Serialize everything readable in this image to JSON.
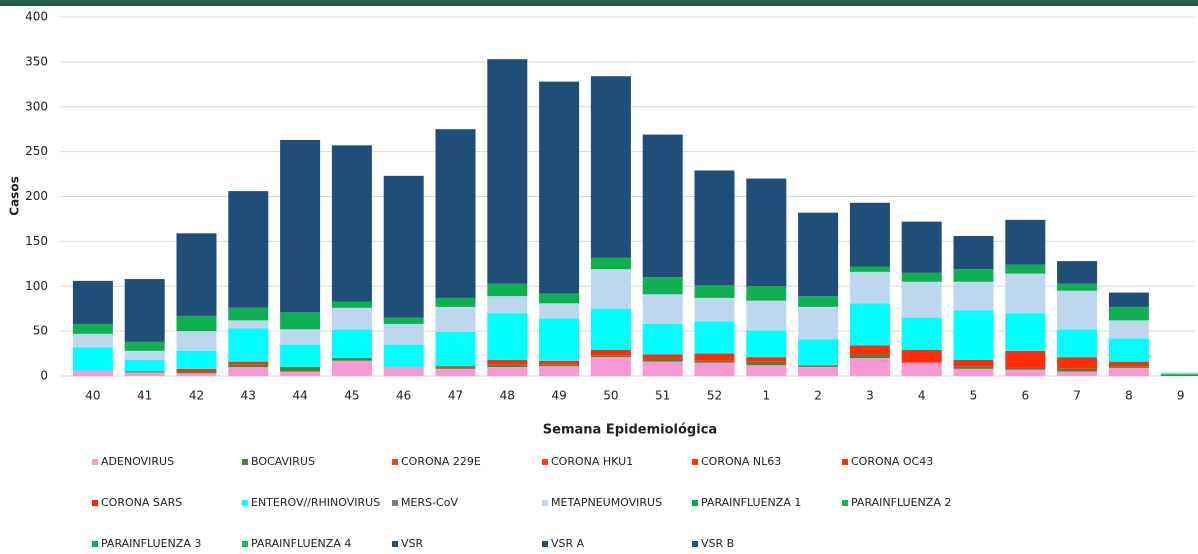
{
  "chart_data": {
    "type": "stacked_bar",
    "categories": [
      "40",
      "41",
      "42",
      "43",
      "44",
      "45",
      "46",
      "47",
      "48",
      "49",
      "50",
      "51",
      "52",
      "1",
      "2",
      "3",
      "4",
      "5",
      "6",
      "7",
      "8",
      "9"
    ],
    "x_label": "Semana Epidemiológica",
    "y_label": "Casos",
    "ylim": [
      0,
      400
    ],
    "yticks": [
      0,
      50,
      100,
      150,
      200,
      250,
      300,
      350,
      400
    ],
    "grid": true,
    "series": [
      {
        "name": "ADENOVIRUS",
        "color": "#f79ad3",
        "values": [
          6,
          4,
          3,
          10,
          5,
          17,
          10,
          8,
          10,
          11,
          21,
          16,
          15,
          12,
          10,
          20,
          15,
          8,
          7,
          5,
          9,
          0
        ]
      },
      {
        "name": "BOCAVIRUS",
        "color": "#548235",
        "values": [
          0,
          1,
          2,
          3,
          5,
          3,
          0,
          2,
          3,
          2,
          2,
          3,
          2,
          4,
          1,
          4,
          0,
          3,
          2,
          3,
          2,
          2
        ]
      },
      {
        "name": "CORONA 229E",
        "color": "#ff3d14",
        "values": [
          0,
          0,
          0,
          0,
          0,
          0,
          0,
          0,
          0,
          0,
          0,
          0,
          0,
          0,
          0,
          0,
          0,
          0,
          0,
          0,
          0,
          0
        ]
      },
      {
        "name": "CORONA HKU1",
        "color": "#ff3f0f",
        "values": [
          0,
          0,
          0,
          0,
          0,
          0,
          0,
          0,
          0,
          0,
          0,
          0,
          0,
          0,
          0,
          0,
          0,
          0,
          0,
          0,
          0,
          0
        ]
      },
      {
        "name": "CORONA NL63",
        "color": "#ff3300",
        "values": [
          0,
          0,
          0,
          0,
          0,
          0,
          0,
          0,
          0,
          0,
          0,
          0,
          0,
          0,
          0,
          0,
          0,
          0,
          0,
          0,
          0,
          0
        ]
      },
      {
        "name": "CORONA OC43",
        "color": "#ff2e0a",
        "values": [
          0,
          0,
          3,
          3,
          0,
          0,
          0,
          1,
          5,
          4,
          6,
          5,
          8,
          5,
          1,
          10,
          14,
          7,
          19,
          13,
          5,
          0
        ]
      },
      {
        "name": "CORONA SARS",
        "color": "#ff2200",
        "values": [
          0,
          0,
          0,
          0,
          0,
          0,
          0,
          0,
          0,
          0,
          0,
          0,
          0,
          0,
          0,
          0,
          0,
          0,
          0,
          0,
          0,
          0
        ]
      },
      {
        "name": "ENTEROV//RHINOVIRUS",
        "color": "#00ffff",
        "values": [
          26,
          13,
          20,
          37,
          25,
          32,
          25,
          38,
          52,
          47,
          46,
          34,
          36,
          30,
          29,
          47,
          36,
          55,
          42,
          31,
          26,
          1
        ]
      },
      {
        "name": "MERS-CoV",
        "color": "#7f7f7f",
        "values": [
          0,
          0,
          0,
          0,
          0,
          0,
          0,
          0,
          0,
          0,
          0,
          0,
          0,
          0,
          0,
          0,
          0,
          0,
          0,
          0,
          0,
          0
        ]
      },
      {
        "name": "METAPNEUMOVIRUS",
        "color": "#bdd7ee",
        "values": [
          15,
          10,
          22,
          9,
          17,
          24,
          23,
          28,
          19,
          17,
          44,
          33,
          26,
          33,
          36,
          35,
          40,
          32,
          44,
          43,
          20,
          1
        ]
      },
      {
        "name": "PARAINFLUENZA 1",
        "color": "#00b050",
        "values": [
          0,
          0,
          0,
          0,
          0,
          0,
          0,
          0,
          0,
          0,
          0,
          0,
          0,
          0,
          0,
          0,
          0,
          0,
          0,
          0,
          0,
          0
        ]
      },
      {
        "name": "PARAINFLUENZA 2",
        "color": "#14b45a",
        "values": [
          0,
          0,
          0,
          0,
          0,
          0,
          0,
          0,
          0,
          0,
          0,
          0,
          0,
          0,
          0,
          0,
          0,
          0,
          0,
          0,
          0,
          0
        ]
      },
      {
        "name": "PARAINFLUENZA 3",
        "color": "#10b052",
        "values": [
          11,
          10,
          17,
          14,
          19,
          7,
          7,
          10,
          14,
          11,
          13,
          19,
          14,
          16,
          12,
          6,
          10,
          14,
          10,
          8,
          15,
          0
        ]
      },
      {
        "name": "PARAINFLUENZA 4",
        "color": "#1cb85e",
        "values": [
          0,
          0,
          0,
          0,
          0,
          0,
          0,
          0,
          0,
          0,
          0,
          0,
          0,
          0,
          0,
          0,
          0,
          0,
          0,
          0,
          0,
          0
        ]
      },
      {
        "name": "VSR",
        "color": "#1f4e79",
        "values": [
          48,
          70,
          92,
          130,
          192,
          174,
          158,
          188,
          250,
          236,
          202,
          159,
          128,
          120,
          93,
          71,
          57,
          37,
          50,
          25,
          16,
          0
        ]
      },
      {
        "name": "VSR A",
        "color": "#204f7a",
        "values": [
          0,
          0,
          0,
          0,
          0,
          0,
          0,
          0,
          0,
          0,
          0,
          0,
          0,
          0,
          0,
          0,
          0,
          0,
          0,
          0,
          0,
          0
        ]
      },
      {
        "name": "VSR B",
        "color": "#1e4d78",
        "values": [
          0,
          0,
          0,
          0,
          0,
          0,
          0,
          0,
          0,
          0,
          0,
          0,
          0,
          0,
          0,
          0,
          0,
          0,
          0,
          0,
          0,
          0
        ]
      }
    ]
  }
}
